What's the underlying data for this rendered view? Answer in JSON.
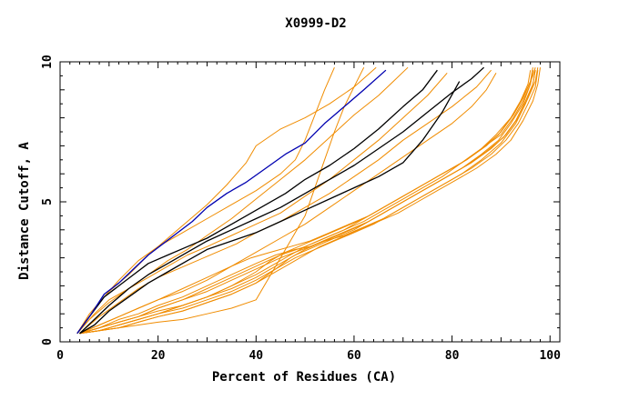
{
  "chart_data": {
    "type": "line",
    "title": "X0999-D2",
    "xlabel": "Percent of Residues (CA)",
    "ylabel": "Distance Cutoff, A",
    "xlim": [
      0,
      102
    ],
    "ylim": [
      0,
      10
    ],
    "xticks": [
      0,
      20,
      40,
      60,
      80,
      100
    ],
    "yticks": [
      0,
      5,
      10
    ],
    "grid": false,
    "legend": "none",
    "colors": {
      "orange": "#f08c00",
      "black": "#000000",
      "blue": "#0000b0"
    },
    "series": [
      {
        "color": "blue",
        "x": [
          3.5,
          6,
          9,
          12,
          15,
          18,
          21,
          24,
          27,
          30,
          34,
          38,
          42,
          46,
          50,
          54,
          58,
          62,
          66.5
        ],
        "y": [
          0.3,
          0.9,
          1.7,
          2.1,
          2.6,
          3.1,
          3.5,
          3.9,
          4.3,
          4.8,
          5.3,
          5.7,
          6.2,
          6.7,
          7.1,
          7.8,
          8.4,
          9.0,
          9.7
        ]
      },
      {
        "color": "black",
        "x": [
          3.5,
          6,
          9,
          12,
          15,
          18,
          22,
          26,
          30,
          34,
          38,
          42,
          46,
          50,
          55,
          60,
          65,
          70,
          74,
          77
        ],
        "y": [
          0.3,
          0.9,
          1.6,
          2.0,
          2.4,
          2.8,
          3.1,
          3.4,
          3.7,
          4.1,
          4.5,
          4.9,
          5.3,
          5.8,
          6.3,
          6.9,
          7.6,
          8.4,
          9.0,
          9.7
        ]
      },
      {
        "color": "black",
        "x": [
          4,
          7,
          10,
          14,
          18,
          22,
          26,
          30,
          35,
          40,
          45,
          50,
          55,
          60,
          65,
          70,
          75,
          80,
          84,
          86.5
        ],
        "y": [
          0.3,
          0.8,
          1.3,
          1.9,
          2.4,
          2.8,
          3.2,
          3.6,
          4.0,
          4.4,
          4.8,
          5.3,
          5.8,
          6.3,
          6.9,
          7.5,
          8.2,
          8.9,
          9.4,
          9.8
        ]
      },
      {
        "color": "black",
        "x": [
          4,
          7,
          10,
          14,
          18,
          22,
          26,
          30,
          35,
          40,
          45,
          50,
          55,
          60,
          65,
          70,
          74,
          78,
          81.5
        ],
        "y": [
          0.3,
          0.6,
          1.1,
          1.6,
          2.1,
          2.5,
          2.9,
          3.3,
          3.6,
          3.9,
          4.3,
          4.7,
          5.1,
          5.5,
          5.9,
          6.4,
          7.2,
          8.2,
          9.3
        ]
      },
      {
        "color": "orange",
        "x": [
          3.5,
          6,
          9,
          12,
          16,
          20,
          25,
          30,
          35,
          40,
          45,
          48,
          50,
          52,
          54,
          56
        ],
        "y": [
          0.3,
          0.9,
          1.6,
          2.2,
          2.9,
          3.4,
          3.9,
          4.4,
          4.9,
          5.4,
          6.0,
          6.5,
          7.2,
          8.1,
          9.0,
          9.8
        ]
      },
      {
        "color": "orange",
        "x": [
          3.5,
          6,
          10,
          14,
          18,
          22,
          26,
          30,
          34,
          38,
          40,
          45,
          50,
          55,
          60,
          64.5
        ],
        "y": [
          0.3,
          1.0,
          1.8,
          2.4,
          3.1,
          3.7,
          4.3,
          4.9,
          5.6,
          6.4,
          7.0,
          7.6,
          8.0,
          8.5,
          9.1,
          9.8
        ]
      },
      {
        "color": "orange",
        "x": [
          3.5,
          6,
          10,
          14,
          18,
          22,
          26,
          30,
          35,
          40,
          45,
          50,
          55,
          60,
          65,
          68,
          71
        ],
        "y": [
          0.3,
          0.8,
          1.4,
          1.9,
          2.4,
          2.9,
          3.3,
          3.8,
          4.4,
          5.1,
          5.8,
          6.5,
          7.3,
          8.1,
          8.8,
          9.3,
          9.8
        ]
      },
      {
        "color": "orange",
        "x": [
          3.5,
          7,
          10,
          14,
          18,
          22,
          26,
          30,
          35,
          40,
          45,
          50,
          55,
          60,
          65,
          70,
          75,
          79
        ],
        "y": [
          0.3,
          1.0,
          1.5,
          1.9,
          2.3,
          2.7,
          3.1,
          3.4,
          3.8,
          4.2,
          4.6,
          5.2,
          5.8,
          6.5,
          7.2,
          8.0,
          8.8,
          9.6
        ]
      },
      {
        "color": "orange",
        "x": [
          4,
          8,
          12,
          16,
          20,
          24,
          28,
          32,
          36,
          40,
          45,
          50,
          55,
          60,
          65,
          70,
          75,
          80,
          85,
          88
        ],
        "y": [
          0.3,
          0.9,
          1.4,
          1.9,
          2.3,
          2.6,
          2.9,
          3.2,
          3.5,
          3.9,
          4.3,
          4.8,
          5.3,
          5.9,
          6.5,
          7.2,
          7.8,
          8.4,
          9.1,
          9.7
        ]
      },
      {
        "color": "orange",
        "x": [
          4,
          8,
          12,
          16,
          20,
          25,
          30,
          35,
          40,
          45,
          50,
          55,
          60,
          65,
          70,
          75,
          80,
          84,
          87,
          89
        ],
        "y": [
          0.3,
          0.6,
          0.9,
          1.2,
          1.5,
          1.8,
          2.2,
          2.7,
          3.2,
          3.7,
          4.2,
          4.8,
          5.4,
          6.0,
          6.6,
          7.2,
          7.8,
          8.4,
          9.0,
          9.6
        ]
      },
      {
        "color": "orange",
        "x": [
          4,
          8,
          12,
          16,
          20,
          25,
          30,
          35,
          40,
          45,
          50,
          52,
          54,
          56,
          58,
          60,
          62
        ],
        "y": [
          0.3,
          0.4,
          0.5,
          0.6,
          0.7,
          0.8,
          1.0,
          1.2,
          1.5,
          3.0,
          4.5,
          5.5,
          6.5,
          7.5,
          8.4,
          9.1,
          9.8
        ]
      },
      {
        "color": "orange",
        "x": [
          4,
          8,
          12,
          16,
          20,
          25,
          30,
          35,
          40,
          44,
          48,
          51,
          54,
          58,
          62,
          66,
          70,
          74,
          78,
          82,
          86,
          90,
          93,
          95,
          96.5,
          97
        ],
        "y": [
          0.3,
          0.5,
          0.8,
          1.0,
          1.3,
          1.6,
          2.0,
          2.4,
          2.8,
          3.1,
          3.3,
          3.4,
          3.6,
          3.8,
          4.1,
          4.4,
          4.8,
          5.2,
          5.6,
          6.0,
          6.5,
          7.1,
          7.8,
          8.5,
          9.2,
          9.7
        ]
      },
      {
        "color": "orange",
        "x": [
          4,
          8,
          12,
          16,
          20,
          25,
          30,
          35,
          40,
          44,
          48,
          52,
          56,
          60,
          64,
          68,
          72,
          76,
          80,
          84,
          88,
          91,
          93.5,
          95.5,
          97,
          97.5
        ],
        "y": [
          0.3,
          0.4,
          0.6,
          0.8,
          1.0,
          1.3,
          1.6,
          1.9,
          2.3,
          2.7,
          3.1,
          3.4,
          3.7,
          4.0,
          4.4,
          4.8,
          5.2,
          5.6,
          6.0,
          6.4,
          6.9,
          7.4,
          8.0,
          8.7,
          9.3,
          9.8
        ]
      },
      {
        "color": "orange",
        "x": [
          4,
          8,
          12,
          16,
          20,
          25,
          30,
          35,
          40,
          44,
          47,
          50,
          54,
          58,
          62,
          66,
          70,
          74,
          78,
          82,
          86,
          89.5,
          92,
          94.5,
          96,
          96.5
        ],
        "y": [
          0.3,
          0.4,
          0.5,
          0.7,
          0.9,
          1.1,
          1.4,
          1.7,
          2.1,
          2.6,
          3.0,
          3.3,
          3.6,
          3.9,
          4.2,
          4.6,
          5.0,
          5.4,
          5.8,
          6.2,
          6.7,
          7.2,
          7.8,
          8.5,
          9.2,
          9.7
        ]
      },
      {
        "color": "orange",
        "x": [
          4,
          8,
          12,
          16,
          20,
          25,
          30,
          35,
          40,
          45,
          48,
          51,
          55,
          59,
          63,
          67,
          71,
          75,
          79,
          83,
          87,
          90.5,
          93,
          95,
          96.5,
          97
        ],
        "y": [
          0.3,
          0.5,
          0.7,
          0.9,
          1.2,
          1.5,
          1.8,
          2.2,
          2.6,
          3.0,
          3.2,
          3.4,
          3.7,
          4.0,
          4.3,
          4.7,
          5.1,
          5.5,
          5.9,
          6.3,
          6.8,
          7.3,
          7.9,
          8.6,
          9.2,
          9.7
        ]
      },
      {
        "color": "orange",
        "x": [
          4,
          8,
          12,
          16,
          20,
          25,
          30,
          35,
          39,
          43,
          47,
          51,
          55,
          59,
          63,
          67,
          71,
          75,
          79,
          83,
          87,
          90,
          92.5,
          94.5,
          96,
          96.5
        ],
        "y": [
          0.3,
          0.6,
          0.9,
          1.2,
          1.5,
          1.9,
          2.3,
          2.7,
          3.0,
          3.2,
          3.4,
          3.6,
          3.9,
          4.2,
          4.5,
          4.9,
          5.3,
          5.7,
          6.1,
          6.5,
          7.0,
          7.5,
          8.1,
          8.7,
          9.3,
          9.8
        ]
      },
      {
        "color": "orange",
        "x": [
          4,
          8,
          12,
          16,
          20,
          25,
          30,
          35,
          40,
          43,
          46,
          50,
          54,
          58,
          62,
          66,
          70,
          74,
          78,
          82,
          86,
          89.5,
          92,
          94,
          95.5,
          96
        ],
        "y": [
          0.3,
          0.5,
          0.7,
          0.9,
          1.1,
          1.3,
          1.6,
          2.0,
          2.5,
          2.9,
          3.2,
          3.5,
          3.8,
          4.1,
          4.4,
          4.8,
          5.2,
          5.6,
          6.0,
          6.4,
          6.9,
          7.4,
          8.0,
          8.6,
          9.2,
          9.7
        ]
      },
      {
        "color": "orange",
        "x": [
          4,
          8,
          12,
          16,
          20,
          25,
          30,
          35,
          40,
          45,
          49,
          53,
          57,
          61,
          65,
          69,
          73,
          77,
          81,
          85,
          89,
          92,
          94.5,
          96.5,
          97.5,
          98
        ],
        "y": [
          0.3,
          0.4,
          0.5,
          0.7,
          0.9,
          1.1,
          1.4,
          1.7,
          2.1,
          2.6,
          3.0,
          3.4,
          3.7,
          4.0,
          4.3,
          4.6,
          5.0,
          5.4,
          5.8,
          6.2,
          6.7,
          7.2,
          7.9,
          8.6,
          9.2,
          9.8
        ]
      },
      {
        "color": "orange",
        "x": [
          4,
          8,
          12,
          16,
          20,
          25,
          30,
          35,
          40,
          44,
          47,
          50,
          54,
          58,
          62,
          66,
          70,
          74,
          78,
          82,
          86,
          90,
          92.5,
          94.5,
          96,
          96.5
        ],
        "y": [
          0.3,
          0.4,
          0.6,
          0.8,
          1.0,
          1.3,
          1.6,
          2.0,
          2.4,
          2.8,
          3.1,
          3.4,
          3.7,
          4.0,
          4.4,
          4.8,
          5.2,
          5.6,
          6.0,
          6.4,
          6.9,
          7.4,
          8.0,
          8.6,
          9.2,
          9.7
        ]
      },
      {
        "color": "orange",
        "x": [
          4,
          8,
          12,
          16,
          20,
          25,
          30,
          35,
          40,
          45,
          50,
          54,
          58,
          62,
          66,
          70,
          74,
          78,
          82,
          86,
          89,
          92,
          94,
          95.5,
          96.5,
          97
        ],
        "y": [
          0.3,
          0.5,
          0.7,
          0.9,
          1.2,
          1.5,
          1.9,
          2.3,
          2.7,
          3.1,
          3.4,
          3.7,
          4.0,
          4.3,
          4.7,
          5.1,
          5.5,
          5.9,
          6.4,
          6.9,
          7.4,
          8.0,
          8.6,
          9.1,
          9.5,
          9.8
        ]
      },
      {
        "color": "orange",
        "x": [
          4,
          8,
          12,
          16,
          20,
          25,
          30,
          35,
          40,
          45,
          48,
          52,
          56,
          60,
          64,
          68,
          72,
          76,
          80,
          84,
          88,
          91,
          93.5,
          95.5,
          97,
          97.5
        ],
        "y": [
          0.3,
          0.4,
          0.6,
          0.8,
          1.0,
          1.2,
          1.5,
          1.8,
          2.2,
          2.7,
          3.0,
          3.3,
          3.6,
          3.9,
          4.2,
          4.6,
          5.0,
          5.4,
          5.8,
          6.2,
          6.7,
          7.2,
          7.8,
          8.5,
          9.1,
          9.7
        ]
      }
    ]
  }
}
